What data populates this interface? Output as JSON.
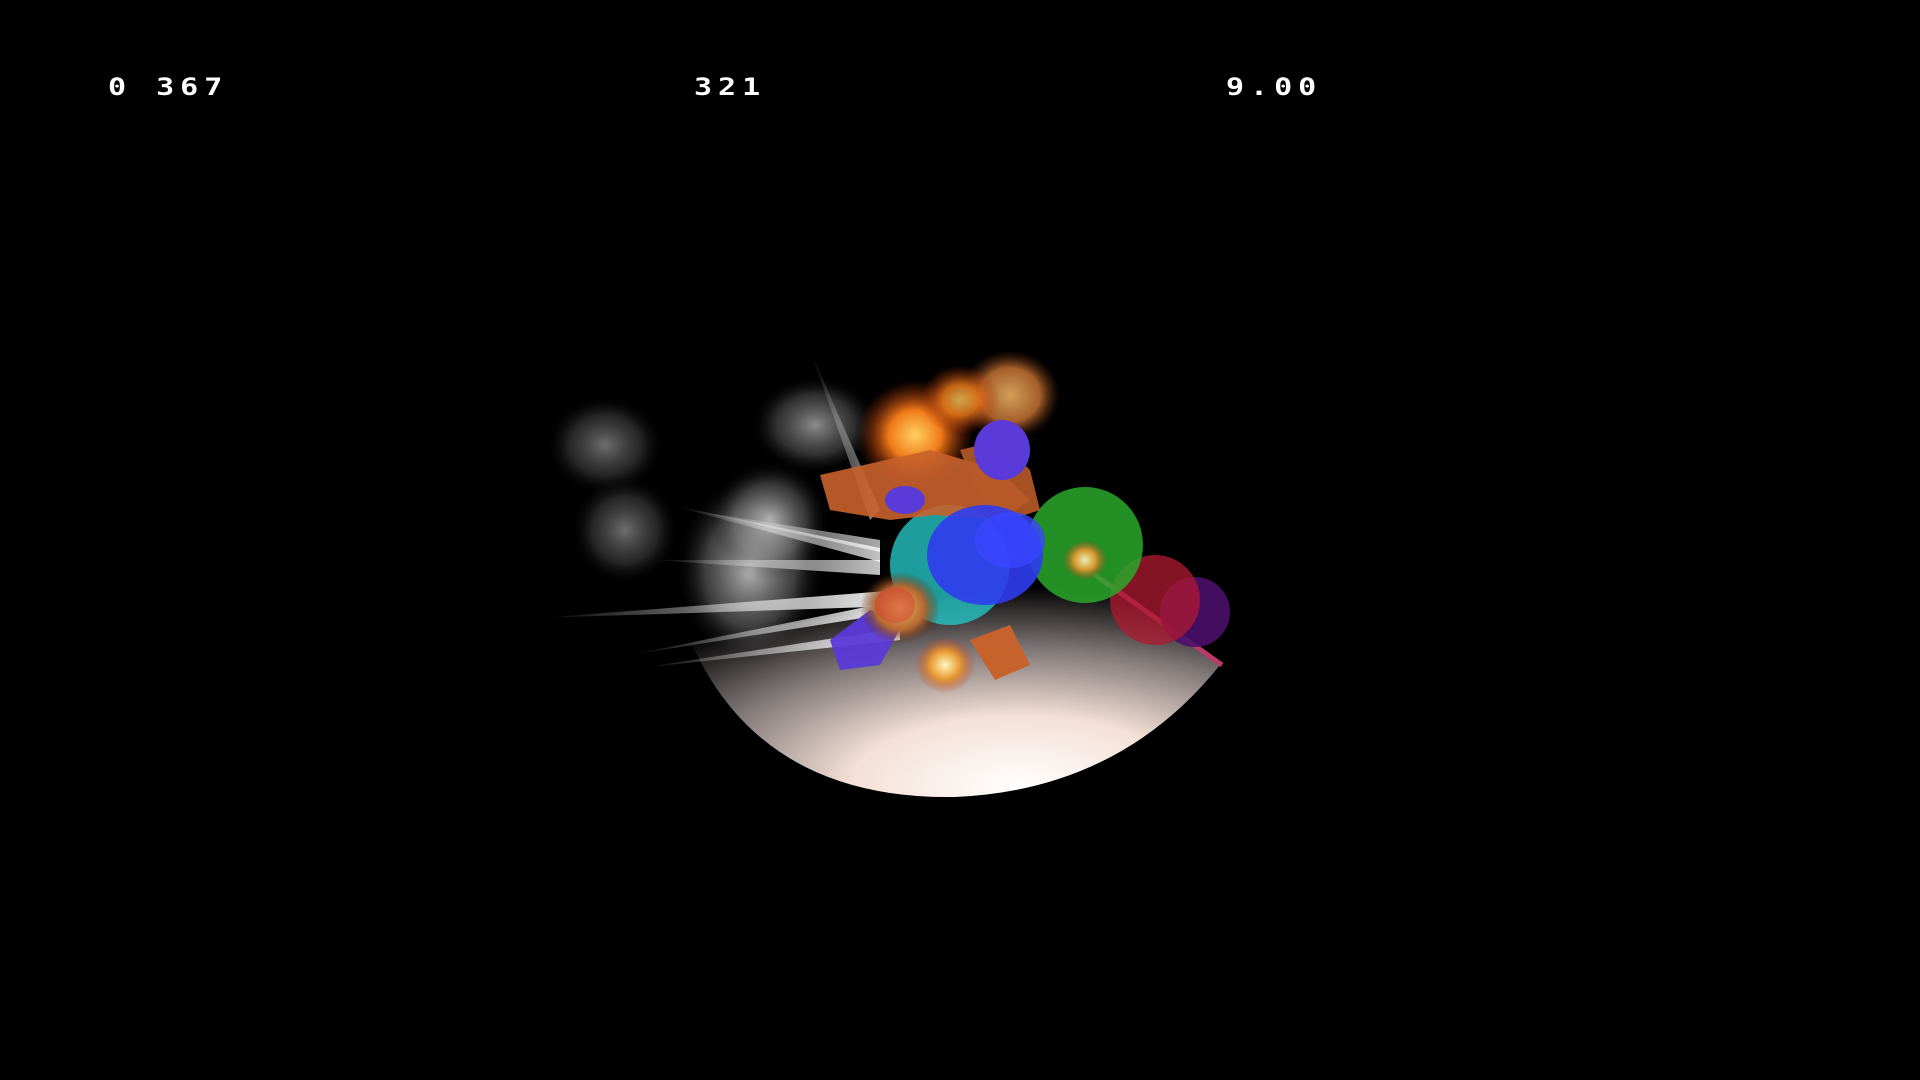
{
  "hud": {
    "left": "0 367",
    "center": "321",
    "right": "9.00"
  },
  "scene": {
    "background": "#000000",
    "colors": {
      "cape": "#c8622c",
      "body_blue": "#2f3cf0",
      "head_purple": "#5a3ad8",
      "hitbox_cyan": "#27c4c4",
      "hitbox_green": "#2aa82a",
      "hitbox_red": "#b01a30",
      "hitbox_purple": "#4a106a",
      "explosion_orange": "#f07a18",
      "smoke": "#bdbdbd",
      "shield_sector": "#ffe8dc"
    },
    "icons": [
      "character-sprite",
      "explosion-effect",
      "smoke-trail",
      "hitbox-spheres",
      "shield-sector"
    ]
  }
}
